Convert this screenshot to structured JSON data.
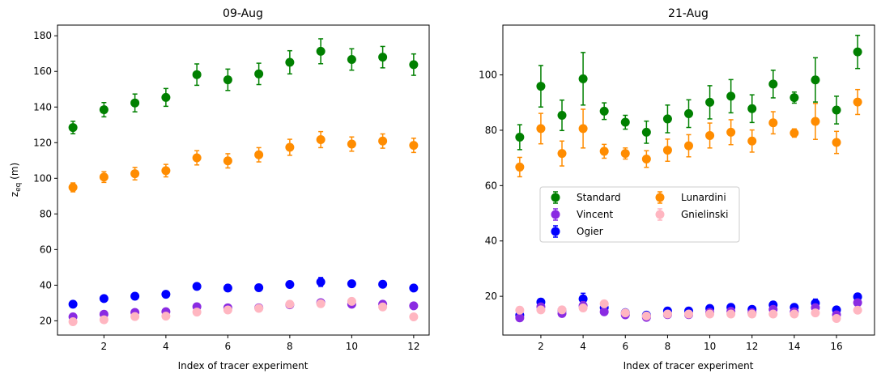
{
  "colors": {
    "Standard": "#008000",
    "Lunardini": "#ff8c00",
    "Vincent": "#8a2be2",
    "Gnielinski": "#ffb6c1",
    "Ogier": "#0000ff"
  },
  "chart_data": [
    {
      "type": "scatter",
      "error_bars": true,
      "title": "09-Aug",
      "xlabel": "Index of tracer experiment",
      "ylabel": "z_eq (m)",
      "xlim": [
        0.5,
        12.5
      ],
      "ylim": [
        12,
        186
      ],
      "xticks": [
        2,
        4,
        6,
        8,
        10,
        12
      ],
      "yticks": [
        20,
        40,
        60,
        80,
        100,
        120,
        140,
        160,
        180
      ],
      "x": [
        1,
        2,
        3,
        4,
        5,
        6,
        7,
        8,
        9,
        10,
        11,
        12
      ],
      "series": [
        {
          "name": "Standard",
          "values": [
            128.5,
            138.5,
            142.3,
            145.4,
            158.2,
            155.3,
            158.6,
            165.1,
            171.3,
            166.7,
            168.0,
            163.8
          ],
          "err": [
            3.5,
            4.0,
            5.0,
            5.0,
            6.0,
            6.0,
            6.0,
            6.5,
            7.0,
            6.0,
            6.0,
            6.0
          ]
        },
        {
          "name": "Lunardini",
          "values": [
            94.9,
            100.7,
            102.6,
            104.3,
            111.5,
            109.8,
            113.2,
            117.4,
            121.7,
            119.2,
            120.9,
            118.5
          ],
          "err": [
            2.5,
            3.0,
            3.5,
            3.5,
            4.0,
            4.0,
            4.0,
            4.5,
            4.5,
            4.0,
            4.0,
            4.0
          ]
        },
        {
          "name": "Ogier",
          "values": [
            29.3,
            32.5,
            33.8,
            34.9,
            39.3,
            38.4,
            38.6,
            40.4,
            41.8,
            40.8,
            40.5,
            38.4
          ],
          "err": [
            0.8,
            0.8,
            0.9,
            0.9,
            1.2,
            1.0,
            1.0,
            1.0,
            2.5,
            1.0,
            1.0,
            1.0
          ]
        },
        {
          "name": "Vincent",
          "values": [
            22.2,
            23.7,
            24.7,
            25.1,
            27.9,
            27.3,
            27.3,
            29.0,
            30.2,
            29.3,
            29.3,
            28.4
          ],
          "err": [
            0.6,
            0.6,
            0.7,
            0.7,
            0.8,
            0.7,
            0.7,
            0.8,
            0.8,
            0.8,
            0.8,
            0.8
          ]
        },
        {
          "name": "Gnielinski",
          "values": [
            19.5,
            20.6,
            22.4,
            22.6,
            24.9,
            26.1,
            27.0,
            29.3,
            29.6,
            30.9,
            27.8,
            22.2
          ],
          "err": [
            0.6,
            0.6,
            0.6,
            0.6,
            0.7,
            0.7,
            0.7,
            0.8,
            0.8,
            0.8,
            0.8,
            0.7
          ]
        }
      ]
    },
    {
      "type": "scatter",
      "error_bars": true,
      "title": "21-Aug",
      "xlabel": "Index of tracer experiment",
      "ylabel": "",
      "xlim": [
        0.2,
        17.8
      ],
      "ylim": [
        6,
        118
      ],
      "xticks": [
        2,
        4,
        6,
        8,
        10,
        12,
        14,
        16
      ],
      "yticks": [
        20,
        40,
        60,
        80,
        100
      ],
      "x": [
        1,
        2,
        3,
        4,
        5,
        6,
        7,
        8,
        9,
        10,
        11,
        12,
        13,
        14,
        15,
        16,
        17
      ],
      "legend": {
        "position": "center-left",
        "columns": 2,
        "entries": [
          "Standard",
          "Vincent",
          "Ogier",
          "Lunardini",
          "Gnielinski"
        ]
      },
      "series": [
        {
          "name": "Standard",
          "values": [
            77.5,
            95.9,
            85.4,
            98.6,
            86.9,
            82.9,
            79.3,
            84.1,
            86.0,
            90.1,
            92.3,
            87.8,
            96.7,
            91.8,
            98.2,
            87.3,
            108.3
          ],
          "err": [
            4.5,
            7.5,
            5.5,
            9.5,
            3.0,
            2.5,
            4.0,
            5.0,
            5.0,
            6.0,
            6.0,
            5.0,
            5.0,
            2.0,
            8.0,
            5.0,
            6.0
          ]
        },
        {
          "name": "Lunardini",
          "values": [
            66.7,
            80.6,
            71.6,
            80.6,
            72.4,
            71.6,
            69.6,
            72.8,
            74.4,
            78.1,
            79.3,
            76.1,
            82.7,
            79.0,
            83.2,
            75.6,
            90.2
          ],
          "err": [
            3.5,
            5.5,
            4.5,
            7.0,
            2.5,
            2.0,
            3.0,
            4.0,
            4.0,
            4.5,
            4.5,
            4.0,
            4.0,
            1.5,
            6.5,
            4.0,
            4.5
          ]
        },
        {
          "name": "Ogier",
          "values": [
            13.2,
            17.9,
            15.0,
            19.1,
            15.9,
            14.1,
            13.2,
            14.7,
            14.7,
            15.6,
            16.0,
            15.3,
            16.9,
            16.0,
            17.5,
            15.1,
            19.8
          ],
          "err": [
            0.8,
            1.2,
            1.0,
            2.0,
            1.0,
            0.8,
            0.8,
            0.8,
            0.8,
            1.0,
            1.0,
            1.0,
            1.0,
            1.0,
            1.5,
            1.0,
            1.2
          ]
        },
        {
          "name": "Vincent",
          "values": [
            12.2,
            16.2,
            13.8,
            16.6,
            14.4,
            13.3,
            12.4,
            13.4,
            13.4,
            14.2,
            14.6,
            14.1,
            15.3,
            14.4,
            15.9,
            13.3,
            17.7
          ],
          "err": [
            0.7,
            1.0,
            0.8,
            1.5,
            0.8,
            0.7,
            0.7,
            0.7,
            0.7,
            0.8,
            0.8,
            0.8,
            0.8,
            0.8,
            1.2,
            0.8,
            1.0
          ]
        },
        {
          "name": "Gnielinski",
          "values": [
            15.0,
            15.1,
            15.1,
            15.8,
            17.3,
            14.0,
            12.9,
            13.6,
            13.6,
            13.6,
            13.6,
            13.6,
            13.6,
            13.6,
            14.0,
            12.0,
            15.0
          ],
          "err": [
            0.6,
            0.6,
            0.6,
            0.7,
            0.8,
            0.6,
            0.6,
            0.6,
            0.6,
            0.6,
            0.6,
            0.6,
            0.6,
            0.6,
            0.7,
            0.6,
            0.6
          ]
        }
      ]
    }
  ]
}
